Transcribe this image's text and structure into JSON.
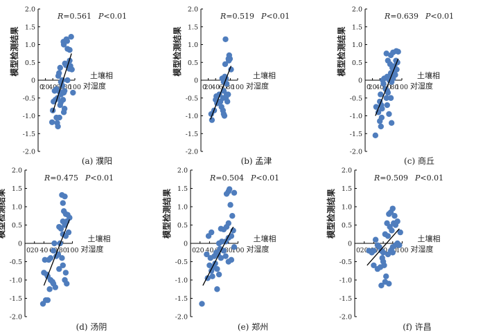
{
  "chart_data": [
    {
      "type": "scatter",
      "caption": "(a) 濮阳",
      "r_label": "R",
      "r_value": "=0.561",
      "p_label": "P",
      "p_value": "<0.01",
      "ylabel": "模型检测结果",
      "xlabel_line1": "土壤相",
      "xlabel_line2": "对湿度",
      "xlim": [
        0,
        100
      ],
      "ylim": [
        -2.0,
        2.0
      ],
      "xticks": [
        "0",
        "20",
        "40",
        "60",
        "80",
        "100"
      ],
      "yticks": [
        "2.0",
        "1.5",
        "1.0",
        "0.5",
        "0",
        "-0.5",
        "-1.0",
        "-1.5",
        "-2.0"
      ],
      "fit_line": [
        [
          40,
          -0.9
        ],
        [
          91,
          0.75
        ]
      ],
      "points": [
        [
          69,
          1.08
        ],
        [
          70,
          1.0
        ],
        [
          77,
          1.15
        ],
        [
          79,
          1.1
        ],
        [
          86,
          0.85
        ],
        [
          90,
          1.22
        ],
        [
          80,
          0.88
        ],
        [
          73,
          0.47
        ],
        [
          76,
          0.42
        ],
        [
          82,
          0.4
        ],
        [
          86,
          0.55
        ],
        [
          88,
          0.4
        ],
        [
          92,
          0.3
        ],
        [
          85,
          0.32
        ],
        [
          60,
          0.35
        ],
        [
          57,
          0.2
        ],
        [
          55,
          0.12
        ],
        [
          66,
          0.0
        ],
        [
          62,
          -0.05
        ],
        [
          66,
          -0.15
        ],
        [
          50,
          -0.25
        ],
        [
          45,
          -0.3
        ],
        [
          58,
          -0.32
        ],
        [
          62,
          -0.4
        ],
        [
          70,
          -0.35
        ],
        [
          72,
          -0.3
        ],
        [
          68,
          -0.55
        ],
        [
          53,
          -0.5
        ],
        [
          47,
          -0.55
        ],
        [
          42,
          -0.6
        ],
        [
          40,
          -0.85
        ],
        [
          60,
          -0.7
        ],
        [
          62,
          -0.62
        ],
        [
          72,
          -0.8
        ],
        [
          70,
          -0.9
        ],
        [
          95,
          -0.35
        ],
        [
          50,
          -1.05
        ],
        [
          52,
          -1.2
        ],
        [
          54,
          -1.3
        ],
        [
          58,
          -1.05
        ],
        [
          38,
          -1.18
        ],
        [
          80,
          0.0
        ]
      ]
    },
    {
      "type": "scatter",
      "caption": "(b) 孟津",
      "r_label": "R",
      "r_value": "=0.519",
      "p_label": "P",
      "p_value": "<0.01",
      "ylabel": "模型检测结果",
      "xlabel_line1": "土壤相",
      "xlabel_line2": "对湿度",
      "xlim": [
        0,
        100
      ],
      "ylim": [
        -2.0,
        2.0
      ],
      "xticks": [
        "0",
        "20",
        "40",
        "60",
        "80",
        "100"
      ],
      "yticks": [
        "2.0",
        "1.5",
        "1.0",
        "0.5",
        "0",
        "-0.5",
        "-1.0",
        "-1.5",
        "-2.0"
      ],
      "fit_line": [
        [
          26,
          -1.1
        ],
        [
          82,
          0.4
        ]
      ],
      "points": [
        [
          67,
          1.15
        ],
        [
          77,
          0.7
        ],
        [
          79,
          0.6
        ],
        [
          75,
          0.6
        ],
        [
          82,
          0.3
        ],
        [
          66,
          0.45
        ],
        [
          58,
          0.05
        ],
        [
          65,
          0.1
        ],
        [
          68,
          0.05
        ],
        [
          62,
          -0.05
        ],
        [
          70,
          -0.1
        ],
        [
          74,
          -0.4
        ],
        [
          70,
          -0.4
        ],
        [
          62,
          -0.3
        ],
        [
          60,
          -0.5
        ],
        [
          50,
          -0.4
        ],
        [
          42,
          -0.45
        ],
        [
          40,
          -0.55
        ],
        [
          44,
          -0.65
        ],
        [
          53,
          -0.6
        ],
        [
          56,
          -0.75
        ],
        [
          60,
          -0.85
        ],
        [
          62,
          -0.95
        ],
        [
          68,
          -0.5
        ],
        [
          72,
          -0.6
        ],
        [
          36,
          -0.85
        ],
        [
          28,
          -0.95
        ],
        [
          30,
          -1.12
        ],
        [
          64,
          -1.0
        ],
        [
          76,
          0.55
        ]
      ]
    },
    {
      "type": "scatter",
      "caption": "(c) 商丘",
      "r_label": "R",
      "r_value": "=0.639",
      "p_label": "P",
      "p_value": "<0.01",
      "ylabel": "模型检测结果",
      "xlabel_line1": "土壤相",
      "xlabel_line2": "对湿度",
      "xlim": [
        0,
        100
      ],
      "ylim": [
        -2.0,
        2.0
      ],
      "xticks": [
        "0",
        "20",
        "40",
        "60",
        "80",
        "100"
      ],
      "yticks": [
        "2.0",
        "1.5",
        "1.0",
        "0.5",
        "0",
        "-0.5",
        "-1.0",
        "-1.5",
        "-2.0"
      ],
      "fit_line": [
        [
          28,
          -1.0
        ],
        [
          90,
          0.6
        ]
      ],
      "points": [
        [
          58,
          0.75
        ],
        [
          62,
          0.55
        ],
        [
          70,
          0.7
        ],
        [
          76,
          0.78
        ],
        [
          85,
          0.82
        ],
        [
          90,
          0.8
        ],
        [
          80,
          0.4
        ],
        [
          84,
          0.55
        ],
        [
          88,
          0.5
        ],
        [
          70,
          0.2
        ],
        [
          74,
          0.1
        ],
        [
          66,
          0.0
        ],
        [
          60,
          0.1
        ],
        [
          52,
          0.05
        ],
        [
          48,
          0.0
        ],
        [
          50,
          -0.1
        ],
        [
          56,
          -0.25
        ],
        [
          60,
          -0.3
        ],
        [
          72,
          -0.05
        ],
        [
          78,
          0.2
        ],
        [
          82,
          0.15
        ],
        [
          76,
          0.05
        ],
        [
          70,
          -0.5
        ],
        [
          62,
          -0.35
        ],
        [
          58,
          -0.5
        ],
        [
          42,
          -0.4
        ],
        [
          40,
          -0.6
        ],
        [
          44,
          -0.7
        ],
        [
          46,
          -0.8
        ],
        [
          36,
          -0.9
        ],
        [
          30,
          -0.75
        ],
        [
          45,
          -1.05
        ],
        [
          40,
          -1.15
        ],
        [
          43,
          -1.3
        ],
        [
          28,
          -1.55
        ],
        [
          60,
          -0.7
        ],
        [
          65,
          -0.95
        ],
        [
          72,
          -1.2
        ],
        [
          86,
          0.3
        ],
        [
          68,
          0.45
        ],
        [
          74,
          0.35
        ],
        [
          80,
          0.25
        ]
      ]
    },
    {
      "type": "scatter",
      "caption": "(d) 汤阴",
      "r_label": "R",
      "r_value": "=0.475",
      "p_label": "P",
      "p_value": "<0.01",
      "ylabel": "模型检测结果",
      "xlabel_line1": "土壤相",
      "xlabel_line2": "对湿度",
      "xlim": [
        0,
        100
      ],
      "ylim": [
        -2.0,
        2.0
      ],
      "xticks": [
        "0",
        "20",
        "40",
        "60",
        "80",
        "100"
      ],
      "yticks": [
        "2.0",
        "1.5",
        "1.0",
        "0.5",
        "0",
        "-0.5",
        "-1.0",
        "-1.5",
        "-2.0"
      ],
      "fit_line": [
        [
          40,
          -1.15
        ],
        [
          94,
          0.65
        ]
      ],
      "points": [
        [
          78,
          1.32
        ],
        [
          84,
          1.28
        ],
        [
          80,
          1.1
        ],
        [
          82,
          0.88
        ],
        [
          86,
          0.8
        ],
        [
          90,
          0.78
        ],
        [
          94,
          0.7
        ],
        [
          80,
          0.6
        ],
        [
          84,
          0.5
        ],
        [
          76,
          0.4
        ],
        [
          72,
          0.45
        ],
        [
          88,
          0.6
        ],
        [
          92,
          0.3
        ],
        [
          86,
          0.2
        ],
        [
          80,
          0.25
        ],
        [
          74,
          0.0
        ],
        [
          62,
          0.0
        ],
        [
          60,
          -0.2
        ],
        [
          66,
          -0.35
        ],
        [
          70,
          -0.3
        ],
        [
          54,
          -0.4
        ],
        [
          50,
          -0.45
        ],
        [
          42,
          -0.45
        ],
        [
          40,
          -0.8
        ],
        [
          46,
          -0.85
        ],
        [
          48,
          -0.9
        ],
        [
          54,
          -1.0
        ],
        [
          58,
          -1.05
        ],
        [
          60,
          -1.1
        ],
        [
          64,
          -1.2
        ],
        [
          52,
          -1.25
        ],
        [
          44,
          -1.55
        ],
        [
          48,
          -1.55
        ],
        [
          38,
          -1.65
        ],
        [
          80,
          -0.6
        ],
        [
          86,
          -0.8
        ],
        [
          78,
          -0.4
        ],
        [
          84,
          -1.0
        ],
        [
          72,
          -0.7
        ],
        [
          88,
          -1.1
        ]
      ]
    },
    {
      "type": "scatter",
      "caption": "(e) 郑州",
      "r_label": "R",
      "r_value": "=0.504",
      "p_label": "P",
      "p_value": "<0.01",
      "ylabel": "模型检测结果",
      "xlabel_line1": "土壤相",
      "xlabel_line2": "对湿度",
      "xlim": [
        0,
        100
      ],
      "ylim": [
        -2.0,
        2.0
      ],
      "xticks": [
        "0",
        "20",
        "40",
        "60",
        "80",
        "100"
      ],
      "yticks": [
        "2.0",
        "1.5",
        "1.0",
        "0.5",
        "0",
        "-0.5",
        "-1.0",
        "-1.5",
        "-2.0"
      ],
      "fit_line": [
        [
          26,
          -1.15
        ],
        [
          90,
          0.45
        ]
      ],
      "points": [
        [
          82,
          1.48
        ],
        [
          80,
          1.42
        ],
        [
          92,
          1.38
        ],
        [
          76,
          1.35
        ],
        [
          84,
          1.05
        ],
        [
          88,
          0.75
        ],
        [
          80,
          0.55
        ],
        [
          76,
          0.45
        ],
        [
          70,
          0.38
        ],
        [
          64,
          0.4
        ],
        [
          90,
          0.35
        ],
        [
          86,
          0.2
        ],
        [
          80,
          0.15
        ],
        [
          74,
          0.05
        ],
        [
          66,
          0.05
        ],
        [
          60,
          0.0
        ],
        [
          62,
          -0.15
        ],
        [
          58,
          -0.3
        ],
        [
          54,
          -0.25
        ],
        [
          50,
          -0.35
        ],
        [
          42,
          -0.4
        ],
        [
          40,
          -0.6
        ],
        [
          44,
          -0.75
        ],
        [
          46,
          -0.9
        ],
        [
          36,
          -0.95
        ],
        [
          48,
          -0.65
        ],
        [
          52,
          -0.55
        ],
        [
          56,
          -0.7
        ],
        [
          60,
          -0.85
        ],
        [
          64,
          -0.4
        ],
        [
          70,
          -0.2
        ],
        [
          74,
          -0.35
        ],
        [
          80,
          -0.5
        ],
        [
          86,
          -0.45
        ],
        [
          92,
          -0.1
        ],
        [
          34,
          -0.3
        ],
        [
          38,
          0.2
        ],
        [
          44,
          0.3
        ],
        [
          24,
          -1.65
        ],
        [
          56,
          -1.25
        ]
      ]
    },
    {
      "type": "scatter",
      "caption": "(f) 许昌",
      "r_label": "R",
      "r_value": "=0.509",
      "p_label": "P",
      "p_value": "<0.01",
      "ylabel": "模型检测结果",
      "xlabel_line1": "土壤相",
      "xlabel_line2": "对湿度",
      "xlim": [
        0,
        100
      ],
      "ylim": [
        -2.0,
        2.0
      ],
      "xticks": [
        "0",
        "20",
        "40",
        "60",
        "80",
        "100"
      ],
      "yticks": [
        "2.0",
        "1.5",
        "1.0",
        "0.5",
        "0",
        "-0.5",
        "-1.0",
        "-1.5",
        "-2.0"
      ],
      "fit_line": [
        [
          26,
          -0.6
        ],
        [
          94,
          0.4
        ]
      ],
      "points": [
        [
          80,
          0.95
        ],
        [
          76,
          0.85
        ],
        [
          84,
          0.75
        ],
        [
          72,
          0.8
        ],
        [
          90,
          0.6
        ],
        [
          82,
          0.55
        ],
        [
          86,
          0.5
        ],
        [
          74,
          0.45
        ],
        [
          68,
          0.55
        ],
        [
          78,
          0.35
        ],
        [
          70,
          0.2
        ],
        [
          96,
          0.3
        ],
        [
          64,
          0.25
        ],
        [
          90,
          0.0
        ],
        [
          86,
          -0.05
        ],
        [
          80,
          -0.1
        ],
        [
          76,
          -0.2
        ],
        [
          70,
          -0.3
        ],
        [
          60,
          -0.25
        ],
        [
          56,
          -0.2
        ],
        [
          52,
          -0.1
        ],
        [
          48,
          -0.05
        ],
        [
          44,
          0.1
        ],
        [
          40,
          -0.2
        ],
        [
          36,
          -0.25
        ],
        [
          30,
          -0.2
        ],
        [
          58,
          -0.4
        ],
        [
          62,
          -0.6
        ],
        [
          54,
          -0.65
        ],
        [
          48,
          -0.7
        ],
        [
          66,
          -0.9
        ],
        [
          64,
          -1.05
        ],
        [
          56,
          -1.15
        ],
        [
          72,
          -1.1
        ],
        [
          94,
          -0.05
        ],
        [
          80,
          -0.25
        ],
        [
          40,
          -0.6
        ],
        [
          60,
          -0.5
        ]
      ]
    }
  ]
}
